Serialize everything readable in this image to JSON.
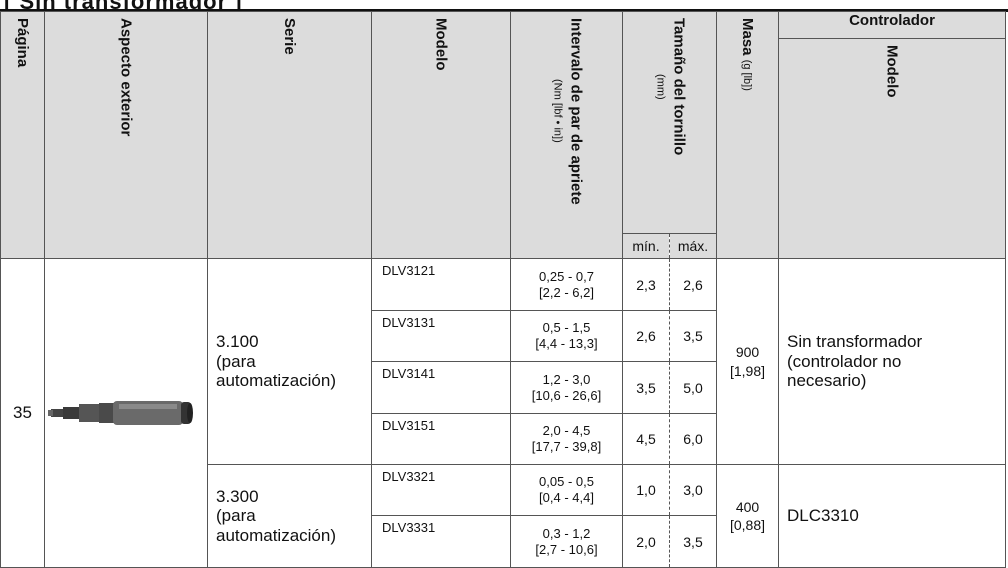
{
  "cut_title": "[ Sin transformador ]",
  "headers": {
    "pagina": "Página",
    "aspecto": "Aspecto exterior",
    "serie": "Serie",
    "modelo": "Modelo",
    "par_line1": "Intervalo de par de apriete",
    "par_units": "(Nm [lbf • in])",
    "tam_line1": "Tamaño del tornillo",
    "tam_units": "(mm)",
    "masa": "Masa",
    "masa_units": "(g [lb])",
    "controlador": "Controlador",
    "ctrl_modelo": "Modelo",
    "min": "mín.",
    "max": "máx."
  },
  "page": "35",
  "groups": [
    {
      "serie": [
        "3.100",
        "(para",
        "automatización)"
      ],
      "masa": [
        "900",
        "[1,98]"
      ],
      "controlador": [
        "Sin transformador",
        "(controlador no",
        "necesario)"
      ]
    },
    {
      "serie": [
        "3.300",
        "(para",
        "automatización)"
      ],
      "masa": [
        "400",
        "[0,88]"
      ],
      "controlador": [
        "DLC3310"
      ]
    }
  ],
  "rows": [
    {
      "model": "DLV3121",
      "torque": [
        "0,25 - 0,7",
        "[2,2 - 6,2]"
      ],
      "min": "2,3",
      "max": "2,6"
    },
    {
      "model": "DLV3131",
      "torque": [
        "0,5 - 1,5",
        "[4,4 - 13,3]"
      ],
      "min": "2,6",
      "max": "3,5"
    },
    {
      "model": "DLV3141",
      "torque": [
        "1,2 - 3,0",
        "[10,6 - 26,6]"
      ],
      "min": "3,5",
      "max": "5,0"
    },
    {
      "model": "DLV3151",
      "torque": [
        "2,0 - 4,5",
        "[17,7 - 39,8]"
      ],
      "min": "4,5",
      "max": "6,0"
    },
    {
      "model": "DLV3321",
      "torque": [
        "0,05 - 0,5",
        "[0,4 - 4,4]"
      ],
      "min": "1,0",
      "max": "3,0"
    },
    {
      "model": "DLV3331",
      "torque": [
        "0,3 - 1,2",
        "[2,7 - 10,6]"
      ],
      "min": "2,0",
      "max": "3,5"
    }
  ],
  "icons": {
    "product_image": "screwdriver-product-photo"
  }
}
